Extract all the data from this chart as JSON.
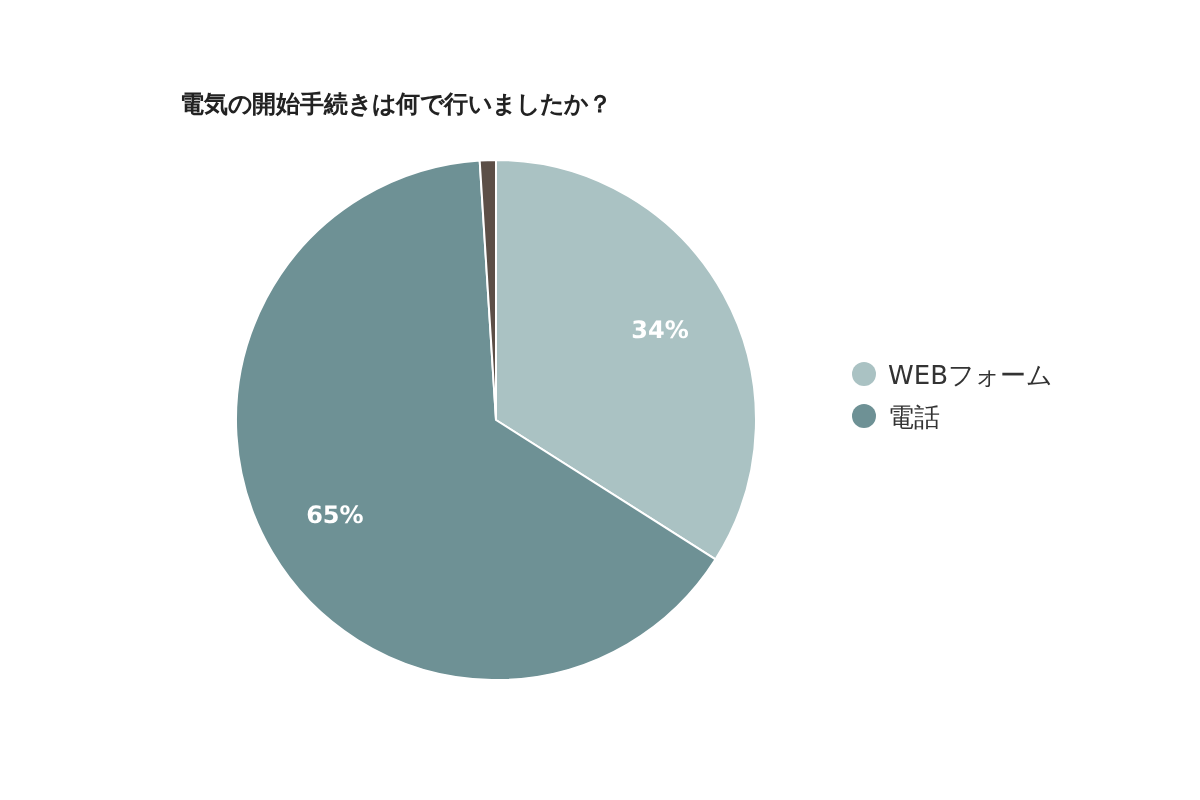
{
  "chart_data": {
    "type": "pie",
    "title": "電気の開始手続きは何で行いましたか？",
    "categories": [
      "WEBフォーム",
      "電話",
      null
    ],
    "values": [
      34,
      65,
      1
    ],
    "colors": [
      "#aac2c3",
      "#6e9195",
      "#5c4f47"
    ],
    "value_labels": [
      "34%",
      "65%",
      null
    ],
    "legend": "right"
  }
}
